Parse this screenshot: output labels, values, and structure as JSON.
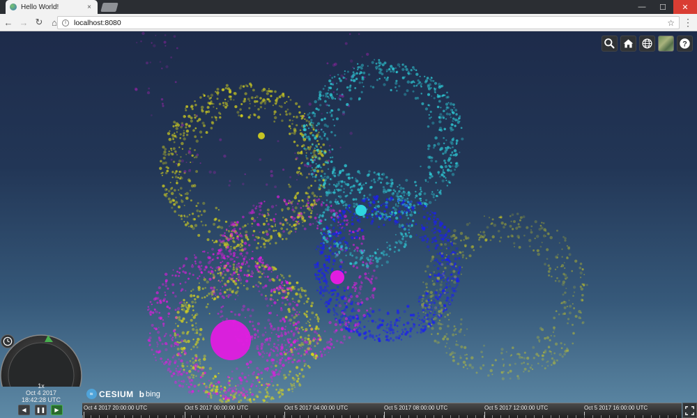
{
  "browser": {
    "tab_title": "Hello World!",
    "tab_close": "×",
    "address": "localhost:8080",
    "window_controls": {
      "minimize": "—",
      "maximize": "☐",
      "close": "✕"
    }
  },
  "toolbar_icons": [
    "search-icon",
    "home-icon",
    "globe-icon",
    "imagery-icon",
    "help-icon"
  ],
  "animation": {
    "speed": "1x",
    "date": "Oct 4 2017",
    "time": "18:42:28 UTC"
  },
  "credits": {
    "cesium": "CESIUM",
    "bing": "bing"
  },
  "timeline": {
    "labels": [
      "Oct 4 2017 20:00:00 UTC",
      "Oct 5 2017 00:00:00 UTC",
      "Oct 5 2017 04:00:00 UTC",
      "Oct 5 2017 08:00:00 UTC",
      "Oct 5 2017 12:00:00 UTC",
      "Oct 5 2017 16:00:00 UTC"
    ]
  },
  "colors": {
    "yellow": "#d8d41e",
    "cyan": "#2fd6e0",
    "magenta": "#e21ce0",
    "blue": "#1b1ff0",
    "accent": "#48b04f"
  }
}
